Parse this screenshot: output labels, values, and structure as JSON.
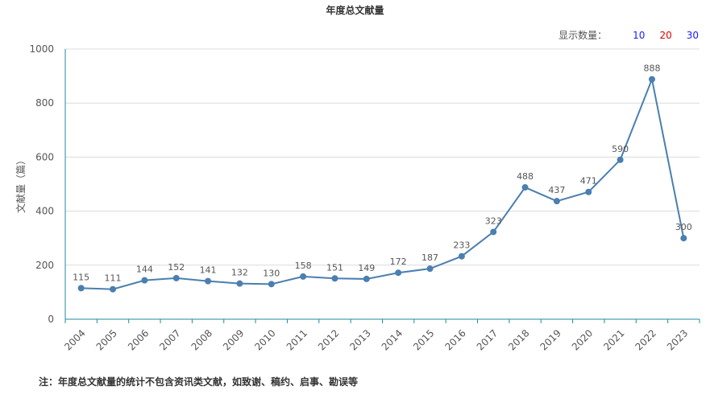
{
  "header": {
    "count_label": "显示数量：",
    "count_options": [
      {
        "label": "10",
        "color": "#1a1aff"
      },
      {
        "label": "20",
        "color": "#e00000"
      },
      {
        "label": "30",
        "color": "#1a1aff"
      }
    ]
  },
  "footnote": "注：年度总文献量的统计不包含资讯类文献，如致谢、稿约、启事、勘误等",
  "chart_data": {
    "type": "line",
    "title": "年度总文献量",
    "xlabel": "",
    "ylabel": "文献量（篇）",
    "ylim": [
      0,
      1000
    ],
    "yticks": [
      0,
      200,
      400,
      600,
      800,
      1000
    ],
    "grid": true,
    "line_color": "#4a7fb0",
    "categories": [
      "2004",
      "2005",
      "2006",
      "2007",
      "2008",
      "2009",
      "2010",
      "2011",
      "2012",
      "2013",
      "2014",
      "2015",
      "2016",
      "2017",
      "2018",
      "2019",
      "2020",
      "2021",
      "2022",
      "2023"
    ],
    "values": [
      115,
      111,
      144,
      152,
      141,
      132,
      130,
      158,
      151,
      149,
      172,
      187,
      233,
      323,
      488,
      437,
      471,
      590,
      888,
      300
    ]
  }
}
